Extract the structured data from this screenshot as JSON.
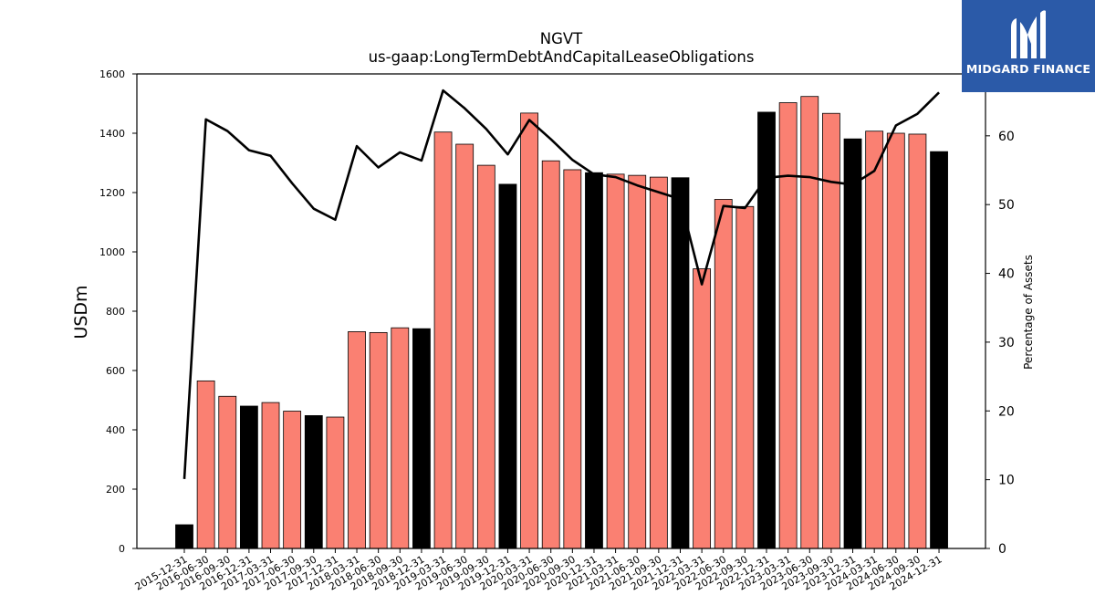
{
  "chart_data": {
    "type": "bar",
    "title": "NGVT",
    "subtitle": "us-gaap:LongTermDebtAndCapitalLeaseObligations",
    "ylabel": "USDm",
    "y2label": "Percentage of Assets",
    "ylim": [
      0,
      1600
    ],
    "y2lim": [
      0,
      69
    ],
    "yticks": [
      0,
      200,
      400,
      600,
      800,
      1000,
      1200,
      1400,
      1600
    ],
    "y2ticks": [
      0,
      10,
      20,
      30,
      40,
      50,
      60
    ],
    "grid": false,
    "categories": [
      "2015-12-31",
      "2016-06-30",
      "2016-09-30",
      "2016-12-31",
      "2017-03-31",
      "2017-06-30",
      "2017-09-30",
      "2017-12-31",
      "2018-03-31",
      "2018-06-30",
      "2018-09-30",
      "2018-12-31",
      "2019-03-31",
      "2019-06-30",
      "2019-09-30",
      "2019-12-31",
      "2020-03-31",
      "2020-06-30",
      "2020-09-30",
      "2020-12-31",
      "2021-03-31",
      "2021-06-30",
      "2021-09-30",
      "2021-12-31",
      "2022-03-31",
      "2022-06-30",
      "2022-09-30",
      "2022-12-31",
      "2023-03-31",
      "2023-06-30",
      "2023-09-30",
      "2023-12-31",
      "2024-03-31",
      "2024-06-30",
      "2024-09-30",
      "2024-12-31"
    ],
    "series": [
      {
        "type": "bar",
        "axis": "left",
        "values": [
          80,
          565,
          513,
          480,
          492,
          463,
          448,
          443,
          731,
          728,
          744,
          741,
          1404,
          1363,
          1292,
          1228,
          1468,
          1307,
          1277,
          1267,
          1262,
          1258,
          1252,
          1250,
          943,
          1177,
          1153,
          1471,
          1503,
          1524,
          1467,
          1381,
          1407,
          1400,
          1397,
          1338
        ],
        "fiscal_year_end_color": "#000000",
        "quarter_color": "#fa8072"
      },
      {
        "type": "line",
        "axis": "right",
        "color": "#000000",
        "values": [
          10.1,
          62.4,
          60.7,
          57.9,
          57.1,
          53.1,
          49.4,
          47.8,
          58.5,
          55.4,
          57.6,
          56.4,
          66.6,
          64.0,
          61.0,
          57.3,
          62.3,
          59.5,
          56.5,
          54.4,
          54.0,
          52.8,
          51.8,
          50.8,
          38.4,
          49.8,
          49.5,
          53.9,
          54.2,
          54.0,
          53.3,
          52.9,
          54.9,
          61.5,
          63.2,
          66.3
        ]
      }
    ],
    "highlighted_categories": [
      "2015-12-31",
      "2016-12-31",
      "2017-09-30",
      "2018-12-31",
      "2019-12-31",
      "2020-12-31",
      "2021-12-31",
      "2022-12-31",
      "2023-12-31",
      "2024-12-31"
    ]
  },
  "logo": {
    "text": "MIDGARD FINANCE",
    "bg_color": "#2b5aa8"
  }
}
